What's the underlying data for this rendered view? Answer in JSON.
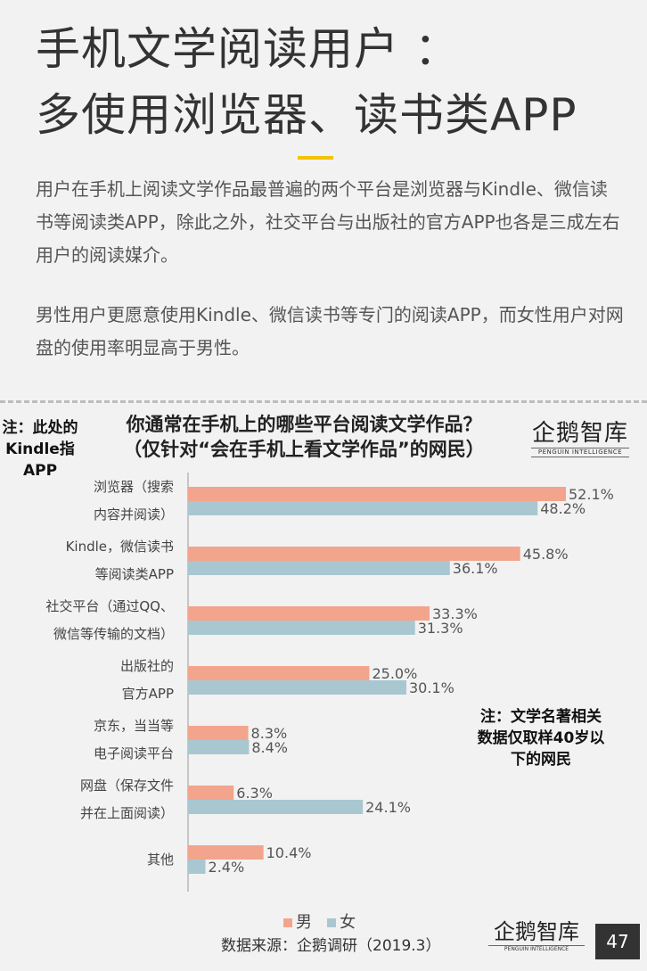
{
  "header": {
    "title_line1": "手机文学阅读用户 ：",
    "title_line2": "多使用浏览器、读书类APP",
    "accent_color": "#f2c300"
  },
  "body": {
    "paragraph1": "用户在手机上阅读文学作品最普遍的两个平台是浏览器与Kindle、微信读书等阅读类APP，除此之外，社交平台与出版社的官方APP也各是三成左右用户的阅读媒介。",
    "paragraph2": "男性用户更愿意使用Kindle、微信读书等专门的阅读APP，而女性用户对网盘的使用率明显高于男性。"
  },
  "notes": {
    "left": "注：此处的Kindle指APP",
    "right": "注：文学名著相关数据仅取样40岁以下的网民"
  },
  "brand": {
    "name_cn": "企鹅智库",
    "name_en": "PENGUIN INTELLIGENCE"
  },
  "chart_data": {
    "type": "bar",
    "orientation": "horizontal",
    "title": "你通常在手机上的哪些平台阅读文学作品？",
    "subtitle": "（仅针对“会在手机上看文学作品”的网民）",
    "categories": [
      [
        "浏览器（搜索",
        "内容并阅读）"
      ],
      [
        "Kindle，微信读书",
        "等阅读类APP"
      ],
      [
        "社交平台（通过QQ、",
        "微信等传输的文档）"
      ],
      [
        "出版社的",
        "官方APP"
      ],
      [
        "京东，当当等",
        "电子阅读平台"
      ],
      [
        "网盘（保存文件",
        "并在上面阅读）"
      ],
      [
        "其他"
      ]
    ],
    "series": [
      {
        "name": "男",
        "color": "#f2a58c",
        "values": [
          52.1,
          45.8,
          33.3,
          25.0,
          8.3,
          6.3,
          10.4
        ]
      },
      {
        "name": "女",
        "color": "#a9c7d1",
        "values": [
          48.2,
          36.1,
          31.3,
          30.1,
          8.4,
          24.1,
          2.4
        ]
      }
    ],
    "value_format": "%",
    "xlim": [
      0,
      55
    ],
    "legend_position": "bottom-center",
    "grid": false
  },
  "footer": {
    "source": "数据来源：企鹅调研（2019.3）",
    "page_number": "47"
  }
}
